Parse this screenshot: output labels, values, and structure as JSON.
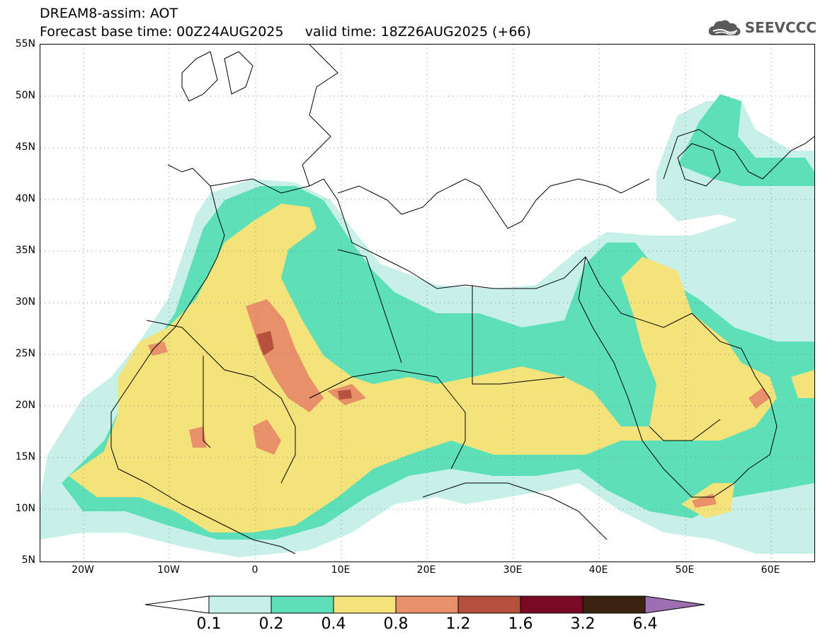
{
  "header": {
    "line1": "DREAM8-assim: AOT",
    "line2": "Forecast base time: 00Z24AUG2025     valid time: 18Z26AUG2025 (+66)"
  },
  "logo": {
    "text": "SEEVCCC",
    "icon": "cloud-icon"
  },
  "map": {
    "lat_labels": [
      "55N",
      "50N",
      "45N",
      "40N",
      "35N",
      "30N",
      "25N",
      "20N",
      "15N",
      "10N",
      "5N"
    ],
    "lon_labels": [
      "20W",
      "10W",
      "0",
      "10E",
      "20E",
      "30E",
      "40E",
      "50E",
      "60E"
    ]
  },
  "colorbar": {
    "labels": [
      "0.1",
      "0.2",
      "0.4",
      "0.8",
      "1.2",
      "1.6",
      "3.2",
      "6.4"
    ],
    "colors": [
      "#c6f0e8",
      "#5ddfb8",
      "#f4e27a",
      "#e8906a",
      "#b5513c",
      "#7a0a24",
      "#3a2410",
      "#9b6fb0"
    ]
  }
}
